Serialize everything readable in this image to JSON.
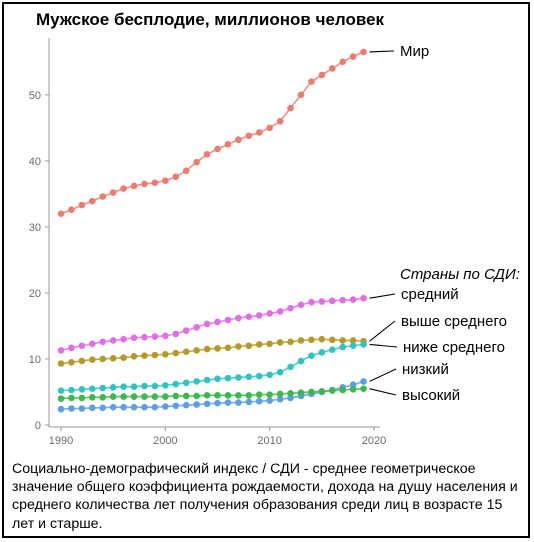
{
  "chart_data": {
    "type": "line",
    "title": "Мужское бесплодие, миллионов человек",
    "xlabel": "",
    "ylabel": "",
    "xlim": [
      1990,
      2020
    ],
    "ylim": [
      0,
      58
    ],
    "x_ticks": [
      "1990",
      "2000",
      "2010",
      "2020"
    ],
    "y_ticks": [
      "0",
      "10",
      "20",
      "30",
      "40",
      "50"
    ],
    "grid": false,
    "x": [
      1990,
      1991,
      1992,
      1993,
      1994,
      1995,
      1996,
      1997,
      1998,
      1999,
      2000,
      2001,
      2002,
      2003,
      2004,
      2005,
      2006,
      2007,
      2008,
      2009,
      2010,
      2011,
      2012,
      2013,
      2014,
      2015,
      2016,
      2017,
      2018,
      2019
    ],
    "legend_title": "Страны по СДИ:",
    "series": [
      {
        "name": "Мир",
        "color": "#ee7b70",
        "values": [
          32.0,
          32.6,
          33.3,
          33.9,
          34.6,
          35.2,
          35.8,
          36.2,
          36.5,
          36.7,
          37.0,
          37.6,
          38.5,
          39.8,
          41.0,
          41.8,
          42.5,
          43.2,
          43.8,
          44.3,
          45.0,
          46.0,
          48.0,
          50.0,
          52.0,
          53.0,
          54.0,
          55.0,
          55.8,
          56.5
        ]
      },
      {
        "name": "средний",
        "color": "#e56ce8",
        "values": [
          11.3,
          11.7,
          12.0,
          12.3,
          12.6,
          12.8,
          13.0,
          13.2,
          13.3,
          13.4,
          13.5,
          13.8,
          14.3,
          14.8,
          15.3,
          15.6,
          15.9,
          16.2,
          16.4,
          16.6,
          16.9,
          17.2,
          17.7,
          18.2,
          18.6,
          18.7,
          18.8,
          18.9,
          19.0,
          19.2
        ]
      },
      {
        "name": "выше среднего",
        "color": "#b59a28",
        "values": [
          9.3,
          9.5,
          9.7,
          9.9,
          10.0,
          10.1,
          10.2,
          10.4,
          10.5,
          10.6,
          10.7,
          10.9,
          11.1,
          11.3,
          11.5,
          11.6,
          11.7,
          11.9,
          12.0,
          12.2,
          12.3,
          12.5,
          12.6,
          12.8,
          12.9,
          13.0,
          12.9,
          12.8,
          12.8,
          12.7
        ]
      },
      {
        "name": "ниже среднего",
        "color": "#2ec4c2",
        "values": [
          5.2,
          5.3,
          5.4,
          5.5,
          5.6,
          5.7,
          5.8,
          5.8,
          5.9,
          5.9,
          6.0,
          6.2,
          6.4,
          6.6,
          6.8,
          7.0,
          7.1,
          7.2,
          7.3,
          7.4,
          7.6,
          8.0,
          8.8,
          9.7,
          10.5,
          11.0,
          11.4,
          11.8,
          12.0,
          12.2
        ]
      },
      {
        "name": "низкий",
        "color": "#5a9fe8",
        "values": [
          2.4,
          2.5,
          2.5,
          2.6,
          2.6,
          2.7,
          2.7,
          2.7,
          2.7,
          2.7,
          2.8,
          2.9,
          3.0,
          3.1,
          3.2,
          3.3,
          3.4,
          3.4,
          3.5,
          3.6,
          3.7,
          3.9,
          4.1,
          4.4,
          4.7,
          5.0,
          5.3,
          5.7,
          6.1,
          6.6
        ]
      },
      {
        "name": "высокий",
        "color": "#3db84a",
        "values": [
          4.0,
          4.1,
          4.1,
          4.2,
          4.2,
          4.3,
          4.3,
          4.3,
          4.3,
          4.3,
          4.3,
          4.4,
          4.4,
          4.4,
          4.5,
          4.5,
          4.5,
          4.5,
          4.5,
          4.6,
          4.6,
          4.7,
          4.8,
          4.9,
          5.0,
          5.1,
          5.2,
          5.3,
          5.4,
          5.5
        ]
      }
    ]
  },
  "footnote": "Социально-демографический индекс / СДИ - среднее геометрическое значение общего коэффициента рождаемости, дохода на душу населения и среднего количества лет получения образования среди лиц в возрасте 15 лет и старше."
}
